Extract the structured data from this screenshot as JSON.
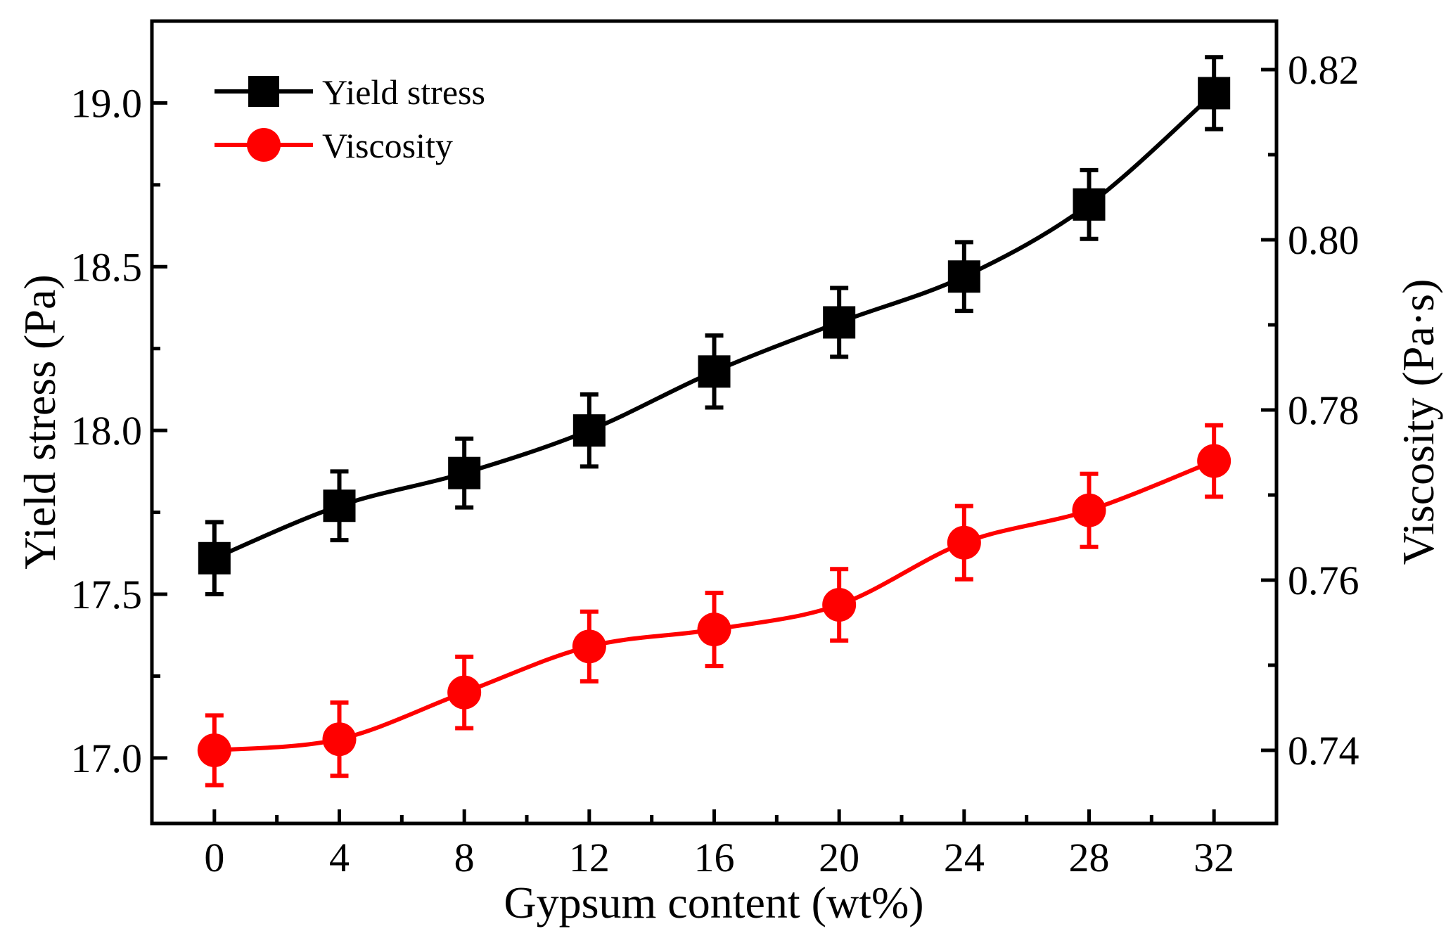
{
  "chart_data": {
    "type": "line",
    "xlabel": "Gypsum content (wt%)",
    "ylabel_left": "Yield stress (Pa)",
    "ylabel_right": "Viscosity (Pa·s)",
    "x": [
      0,
      4,
      8,
      12,
      16,
      20,
      24,
      28,
      32
    ],
    "x_ticks": [
      "0",
      "4",
      "8",
      "12",
      "16",
      "20",
      "24",
      "28",
      "32"
    ],
    "xlim": [
      -2,
      34
    ],
    "ylim_left": [
      16.8,
      19.25
    ],
    "ylim_right": [
      0.7314,
      0.8257
    ],
    "y_ticks_left": [
      "17.0",
      "17.5",
      "18.0",
      "18.5",
      "19.0"
    ],
    "y_ticks_right": [
      "0.74",
      "0.76",
      "0.78",
      "0.80",
      "0.82"
    ],
    "grid": false,
    "legend_position": "top-left",
    "series": [
      {
        "name": "Yield stress",
        "axis": "left",
        "marker": "square",
        "color": "#000000",
        "values": [
          17.61,
          17.77,
          17.87,
          18.0,
          18.18,
          18.33,
          18.47,
          18.69,
          19.03
        ],
        "errors": [
          0.11,
          0.105,
          0.105,
          0.11,
          0.11,
          0.105,
          0.105,
          0.105,
          0.11
        ]
      },
      {
        "name": "Viscosity",
        "axis": "right",
        "marker": "circle",
        "color": "#ff0000",
        "values": [
          0.74,
          0.7413,
          0.7468,
          0.7522,
          0.7542,
          0.7571,
          0.7644,
          0.7682,
          0.774
        ],
        "errors": [
          0.0041,
          0.0043,
          0.0042,
          0.0041,
          0.0043,
          0.0042,
          0.0043,
          0.0043,
          0.0042
        ]
      }
    ]
  }
}
